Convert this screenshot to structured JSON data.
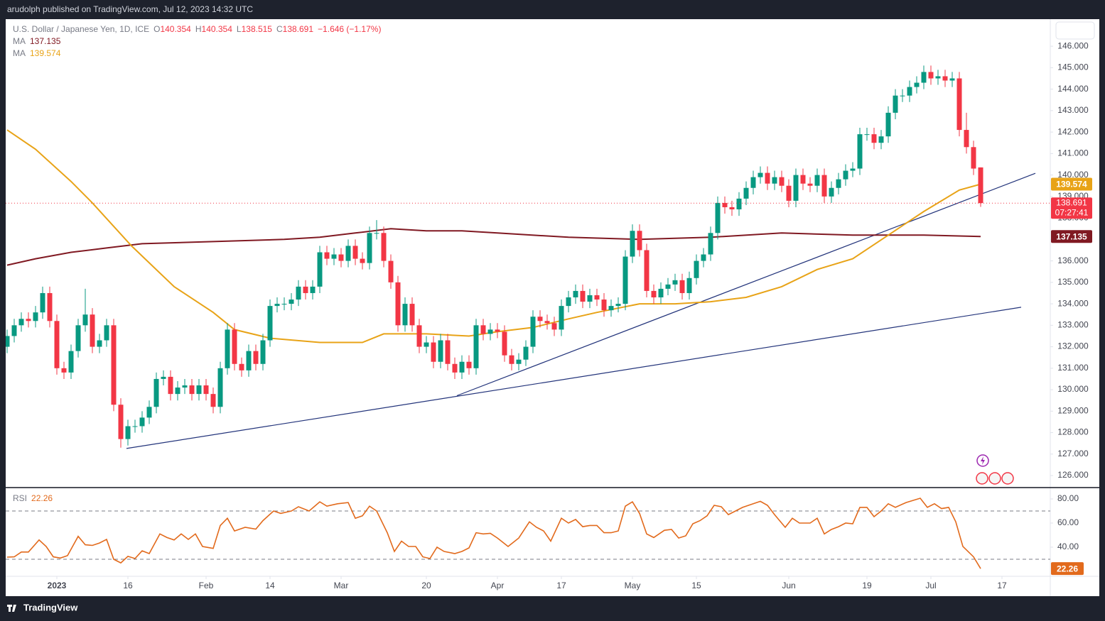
{
  "header": {
    "published": "arudolph published on TradingView.com, Jul 12, 2023 14:32 UTC",
    "brand": "TradingView"
  },
  "chart_data": [
    {
      "type": "candlestick",
      "title": "U.S. Dollar / Japanese Yen, 1D, ICE",
      "ohlc_keys": [
        "O",
        "H",
        "L",
        "C"
      ],
      "change_label": "−1.646 (−1.17%)",
      "up_color": "#089981",
      "down_color": "#f23645",
      "open": [
        132.0,
        132.5,
        133.0,
        133.3,
        133.2,
        133.6,
        134.5,
        133.2,
        131.0,
        130.8,
        131.8,
        133.0,
        133.5,
        132.0,
        132.3,
        133.0,
        129.3,
        127.7,
        128.3,
        128.3,
        128.7,
        129.2,
        130.5,
        130.6,
        129.8,
        130.1,
        130.2,
        129.8,
        130.2,
        129.8,
        129.2,
        131.0,
        132.8,
        131.2,
        130.9,
        131.8,
        131.2,
        132.3,
        133.9,
        134.0,
        134.0,
        134.2,
        134.8,
        134.5,
        134.8,
        136.4,
        136.1,
        136.3,
        136.0,
        136.7,
        136.1,
        135.9,
        137.3,
        137.3,
        136.0,
        135.0,
        133.0,
        134.0,
        133.0,
        132.0,
        132.2,
        131.3,
        132.3,
        131.2,
        130.8,
        131.3,
        131.0,
        133.0,
        132.6,
        132.8,
        132.7,
        131.6,
        131.2,
        131.4,
        132.0,
        133.4,
        133.2,
        133.1,
        132.8,
        133.9,
        134.3,
        134.6,
        134.1,
        134.4,
        134.2,
        133.7,
        133.9,
        134.0,
        136.2,
        137.4,
        136.5,
        134.6,
        134.3,
        134.7,
        134.9,
        135.1,
        134.5,
        135.2,
        136.0,
        136.3,
        137.3,
        138.7,
        138.5,
        138.4,
        138.9,
        139.4,
        139.9,
        140.1,
        139.6,
        139.9,
        139.5,
        138.8,
        140.0,
        139.6,
        139.5,
        140.0,
        139.0,
        139.4,
        139.8,
        140.2,
        140.3,
        141.9,
        141.9,
        141.5,
        141.8,
        142.9,
        143.7,
        143.7,
        144.1,
        144.3,
        144.8,
        144.5,
        144.6,
        144.4,
        144.5,
        142.1,
        141.3,
        140.354
      ],
      "high": [
        132.8,
        133.3,
        133.6,
        133.6,
        133.9,
        134.8,
        134.8,
        133.5,
        131.3,
        132.1,
        133.3,
        134.7,
        133.8,
        132.6,
        133.3,
        133.3,
        129.6,
        128.6,
        128.6,
        129.0,
        129.5,
        130.8,
        130.9,
        130.9,
        130.4,
        130.5,
        130.5,
        130.5,
        130.5,
        130.1,
        131.3,
        133.1,
        133.1,
        131.5,
        132.1,
        132.1,
        132.6,
        134.2,
        134.3,
        134.3,
        134.5,
        135.1,
        135.1,
        135.1,
        136.7,
        136.7,
        136.6,
        136.6,
        137.0,
        137.0,
        136.4,
        137.6,
        137.9,
        137.6,
        136.3,
        135.3,
        134.3,
        134.3,
        133.3,
        132.5,
        132.5,
        132.6,
        132.6,
        131.5,
        131.6,
        131.6,
        133.3,
        133.3,
        133.1,
        133.1,
        133.0,
        131.9,
        131.7,
        132.3,
        133.7,
        133.7,
        133.5,
        133.4,
        134.2,
        134.6,
        134.9,
        134.9,
        134.7,
        134.7,
        134.5,
        134.2,
        134.3,
        136.5,
        137.7,
        137.7,
        136.8,
        134.9,
        135.0,
        135.2,
        135.4,
        135.4,
        135.5,
        136.3,
        136.6,
        137.6,
        139.0,
        139.0,
        138.8,
        139.2,
        139.7,
        140.2,
        140.4,
        140.4,
        140.2,
        140.2,
        139.8,
        140.3,
        140.3,
        139.9,
        140.3,
        140.3,
        139.7,
        140.1,
        140.5,
        140.6,
        142.2,
        142.2,
        142.2,
        142.1,
        143.2,
        144.0,
        144.0,
        144.4,
        144.6,
        145.1,
        145.1,
        144.9,
        144.9,
        144.8,
        144.8,
        142.9,
        141.6,
        140.354
      ],
      "low": [
        131.7,
        132.2,
        132.7,
        132.9,
        132.9,
        133.3,
        132.9,
        130.7,
        130.5,
        130.5,
        131.5,
        132.7,
        131.7,
        131.7,
        132.0,
        129.0,
        127.3,
        127.4,
        128.0,
        128.0,
        128.4,
        128.9,
        130.2,
        129.5,
        129.5,
        129.8,
        129.5,
        129.5,
        129.5,
        128.9,
        128.9,
        130.7,
        130.9,
        130.6,
        130.6,
        130.9,
        130.9,
        132.0,
        133.6,
        133.7,
        133.7,
        133.9,
        134.2,
        134.2,
        134.5,
        135.8,
        135.8,
        135.7,
        135.7,
        135.8,
        135.6,
        135.6,
        137.0,
        135.7,
        134.7,
        132.7,
        132.7,
        132.7,
        131.7,
        131.7,
        131.0,
        131.0,
        130.9,
        130.5,
        130.5,
        130.7,
        130.7,
        132.3,
        132.3,
        132.4,
        131.3,
        130.9,
        130.9,
        131.1,
        131.7,
        132.9,
        132.8,
        132.5,
        132.5,
        133.6,
        134.0,
        133.8,
        133.8,
        133.9,
        133.4,
        133.4,
        133.6,
        133.7,
        135.9,
        136.2,
        134.3,
        134.0,
        134.0,
        134.4,
        134.6,
        134.2,
        134.2,
        134.9,
        135.7,
        136.0,
        137.0,
        138.2,
        138.1,
        138.1,
        138.6,
        139.1,
        139.6,
        139.3,
        139.3,
        139.2,
        138.5,
        138.5,
        139.3,
        139.2,
        139.2,
        138.7,
        138.7,
        139.1,
        139.5,
        139.9,
        140.0,
        141.6,
        141.2,
        141.2,
        141.5,
        142.6,
        143.4,
        143.4,
        143.8,
        144.0,
        144.2,
        144.2,
        144.1,
        144.1,
        141.8,
        141.0,
        140.0,
        138.515
      ],
      "close": [
        132.5,
        133.0,
        133.3,
        133.2,
        133.6,
        134.5,
        133.2,
        131.0,
        130.8,
        131.8,
        133.0,
        133.5,
        132.0,
        132.3,
        133.0,
        129.3,
        127.7,
        128.3,
        128.3,
        128.7,
        129.2,
        130.5,
        130.6,
        129.8,
        130.1,
        130.2,
        129.8,
        130.2,
        129.8,
        129.2,
        131.0,
        132.8,
        131.2,
        130.9,
        131.8,
        131.2,
        132.3,
        133.9,
        134.0,
        134.0,
        134.2,
        134.8,
        134.5,
        134.8,
        136.4,
        136.1,
        136.3,
        136.0,
        136.7,
        136.1,
        135.9,
        137.3,
        137.3,
        136.0,
        135.0,
        133.0,
        134.0,
        133.0,
        132.0,
        132.2,
        131.3,
        132.3,
        131.2,
        130.8,
        131.3,
        131.0,
        133.0,
        132.6,
        132.8,
        132.7,
        131.6,
        131.2,
        131.4,
        132.0,
        133.4,
        133.2,
        133.1,
        132.8,
        133.9,
        134.3,
        134.6,
        134.1,
        134.4,
        134.2,
        133.7,
        133.9,
        134.0,
        136.2,
        137.4,
        136.5,
        134.6,
        134.3,
        134.7,
        134.9,
        135.1,
        134.5,
        135.2,
        136.0,
        136.3,
        137.3,
        138.7,
        138.5,
        138.4,
        138.9,
        139.4,
        139.9,
        140.1,
        139.6,
        139.9,
        139.5,
        138.8,
        140.0,
        139.6,
        139.5,
        140.0,
        139.0,
        139.4,
        139.8,
        140.2,
        140.3,
        141.9,
        141.9,
        141.5,
        141.8,
        142.9,
        143.7,
        143.7,
        144.1,
        144.3,
        144.8,
        144.5,
        144.6,
        144.4,
        144.5,
        142.1,
        141.3,
        140.3,
        138.691
      ],
      "countdown": "07:27:41",
      "series": [
        {
          "name": "MA",
          "color": "#801922",
          "x": [
            0,
            4,
            9,
            14,
            19,
            29,
            39,
            44,
            49,
            54,
            59,
            64,
            69,
            79,
            89,
            99,
            109,
            119,
            129,
            137
          ],
          "values": [
            135.8,
            136.1,
            136.4,
            136.6,
            136.8,
            136.9,
            137.0,
            137.1,
            137.3,
            137.5,
            137.4,
            137.4,
            137.3,
            137.1,
            137.0,
            137.1,
            137.3,
            137.2,
            137.2,
            137.135
          ]
        },
        {
          "name": "MA",
          "color": "#e8a317",
          "x": [
            0,
            4,
            9,
            12,
            17.5,
            23.5,
            29,
            32,
            37,
            44,
            50,
            53,
            59,
            65,
            69,
            74,
            79,
            83,
            89,
            94,
            99,
            104,
            109,
            114,
            119,
            124,
            129,
            134,
            137
          ],
          "values": [
            142.1,
            141.2,
            139.7,
            138.7,
            136.7,
            134.8,
            133.6,
            132.8,
            132.4,
            132.2,
            132.2,
            132.6,
            132.6,
            132.5,
            132.7,
            132.9,
            133.3,
            133.6,
            134.0,
            134.0,
            134.1,
            134.3,
            134.8,
            135.6,
            136.1,
            137.2,
            138.3,
            139.3,
            139.574
          ]
        }
      ],
      "trendlines": [
        {
          "color": "#22337a",
          "x": [
            16.8,
            142.7
          ],
          "values": [
            127.26,
            133.84
          ]
        },
        {
          "color": "#22337a",
          "x": [
            63.3,
            144.7
          ],
          "values": [
            129.72,
            140.08
          ]
        }
      ],
      "xlim": [
        -0.2,
        146.8
      ],
      "xticks": [
        {
          "value": 7,
          "label": "2023"
        },
        {
          "value": 17,
          "label": "16"
        },
        {
          "value": 28,
          "label": "Feb"
        },
        {
          "value": 37,
          "label": "14"
        },
        {
          "value": 47,
          "label": "Mar"
        },
        {
          "value": 59,
          "label": "20"
        },
        {
          "value": 69,
          "label": "Apr"
        },
        {
          "value": 78,
          "label": "17"
        },
        {
          "value": 88,
          "label": "May"
        },
        {
          "value": 97,
          "label": "15"
        },
        {
          "value": 110,
          "label": "Jun"
        },
        {
          "value": 121,
          "label": "19"
        },
        {
          "value": 130,
          "label": "Jul"
        },
        {
          "value": 140,
          "label": "17"
        }
      ],
      "ylim": [
        125.44,
        147.26
      ],
      "yticks": [
        {
          "value": 126,
          "label": "126.000"
        },
        {
          "value": 127,
          "label": "127.000"
        },
        {
          "value": 128,
          "label": "128.000"
        },
        {
          "value": 129,
          "label": "129.000"
        },
        {
          "value": 130,
          "label": "130.000"
        },
        {
          "value": 131,
          "label": "131.000"
        },
        {
          "value": 132,
          "label": "132.000"
        },
        {
          "value": 133,
          "label": "133.000"
        },
        {
          "value": 134,
          "label": "134.000"
        },
        {
          "value": 135,
          "label": "135.000"
        },
        {
          "value": 136,
          "label": "136.000"
        },
        {
          "value": 137,
          "label": "137.000"
        },
        {
          "value": 138,
          "label": "138.000"
        },
        {
          "value": 139,
          "label": "139.000"
        },
        {
          "value": 140,
          "label": "140.000"
        },
        {
          "value": 141,
          "label": "141.000"
        },
        {
          "value": 142,
          "label": "142.000"
        },
        {
          "value": 143,
          "label": "143.000"
        },
        {
          "value": 144,
          "label": "144.000"
        },
        {
          "value": 145,
          "label": "145.000"
        },
        {
          "value": 146,
          "label": "146.000"
        }
      ],
      "grid": false
    },
    {
      "type": "line",
      "name": "RSI",
      "color": "#e26a1c",
      "x": [
        0,
        1,
        2,
        3,
        4.5,
        5.5,
        6.5,
        7.5,
        8.5,
        10,
        11,
        12,
        13,
        14,
        15,
        16,
        17,
        18,
        19,
        20,
        21.5,
        22.5,
        23.5,
        24.5,
        25.5,
        26.5,
        27.5,
        29,
        30,
        31,
        32,
        33.5,
        35,
        36,
        37.5,
        38.5,
        40,
        41,
        42.5,
        44,
        45,
        46.5,
        48,
        49,
        50,
        51,
        52,
        53.5,
        54.5,
        55.5,
        56.5,
        57.5,
        58.5,
        59.5,
        60.5,
        61.5,
        63,
        64,
        65,
        66,
        67,
        68,
        69,
        70.5,
        72,
        73.5,
        74.5,
        75.5,
        76.5,
        78,
        79,
        80,
        81,
        82,
        83,
        84,
        85,
        86,
        87,
        88,
        89,
        90,
        91,
        92.5,
        93.5,
        94.5,
        95.5,
        96.5,
        97.5,
        98.5,
        99.5,
        100.5,
        101.5,
        102.5,
        103.5,
        105,
        106,
        107,
        108,
        109.5,
        110.5,
        111.5,
        113,
        114,
        115,
        116,
        117,
        118,
        119,
        120,
        121,
        122,
        123,
        124,
        125,
        126.5,
        128.5,
        129.5,
        130.5,
        131.5,
        132.5,
        133.5,
        134.5,
        136,
        137
      ],
      "values": [
        31.8,
        32,
        36,
        36,
        46,
        40.6,
        32,
        31,
        33,
        49,
        42,
        41.5,
        43.5,
        46.5,
        30,
        27,
        32.4,
        30.6,
        37,
        34.7,
        51,
        48,
        46,
        51,
        46.5,
        51,
        40.6,
        39,
        58,
        64,
        53.5,
        56.5,
        55,
        62,
        70,
        68,
        70,
        73.5,
        70,
        77.6,
        74,
        76,
        77,
        64,
        66,
        74,
        70,
        52,
        36.5,
        45,
        40.6,
        40.6,
        32,
        30.6,
        40,
        36.5,
        34.7,
        36.5,
        39.4,
        52,
        51,
        51.5,
        47.6,
        40.6,
        47.6,
        61,
        56.5,
        53.5,
        45,
        64,
        60,
        63,
        57,
        58,
        58,
        52,
        52,
        53.5,
        74,
        77.6,
        68,
        51,
        48,
        54,
        54.7,
        47.6,
        49.4,
        59.4,
        62,
        66,
        74.7,
        73.5,
        67,
        70,
        73,
        76,
        78,
        74.7,
        67,
        56.5,
        64,
        60,
        60,
        64,
        51,
        54.7,
        57,
        60,
        59.4,
        73,
        73,
        65.3,
        70,
        76,
        73,
        77,
        80.6,
        73,
        76,
        72,
        73,
        61,
        40.6,
        32,
        22.26
      ],
      "bands": [
        70,
        30
      ],
      "ylim": [
        15.9,
        89.4
      ],
      "yticks": [
        {
          "value": 40,
          "label": "40.00"
        },
        {
          "value": 60,
          "label": "60.00"
        },
        {
          "value": 80,
          "label": "80.00"
        }
      ]
    }
  ]
}
